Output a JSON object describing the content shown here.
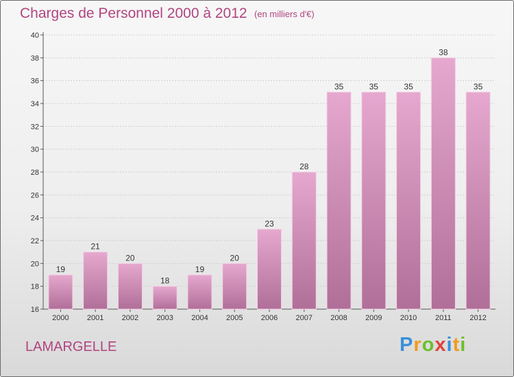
{
  "header": {
    "title": "Charges de Personnel 2000 à 2012",
    "subtitle": "(en milliers d'€)"
  },
  "footer": {
    "location": "LAMARGELLE",
    "brand": "Proxiti",
    "brand_colors": [
      "#3a8fd8",
      "#f29a1d",
      "#6cbf2a",
      "#e0413a",
      "#3a8fd8",
      "#f29a1d",
      "#6cbf2a"
    ]
  },
  "colors": {
    "bar_top": "#e6a8cf",
    "bar_bottom": "#b06f98",
    "accent": "#b0457f"
  },
  "chart_data": {
    "type": "bar",
    "title": "Charges de Personnel 2000 à 2012",
    "subtitle": "(en milliers d'€)",
    "categories": [
      "2000",
      "2001",
      "2002",
      "2003",
      "2004",
      "2005",
      "2006",
      "2007",
      "2008",
      "2009",
      "2010",
      "2011",
      "2012"
    ],
    "values": [
      19,
      21,
      20,
      18,
      19,
      20,
      23,
      28,
      35,
      35,
      35,
      38,
      35
    ],
    "ylim": [
      16,
      40
    ],
    "yticks": [
      16,
      18,
      20,
      22,
      24,
      26,
      28,
      30,
      32,
      34,
      36,
      38,
      40
    ],
    "grid": true,
    "legend": "none"
  }
}
